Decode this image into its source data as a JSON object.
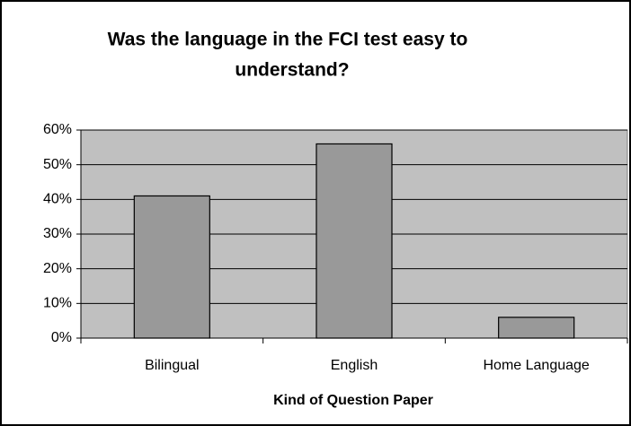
{
  "chart_data": {
    "type": "bar",
    "title_lines": [
      "Was the language in the FCI test  easy to",
      "understand?"
    ],
    "x_label": "Kind of Question Paper",
    "categories": [
      "Bilingual",
      "English",
      "Home Language"
    ],
    "values": [
      41,
      56,
      6
    ],
    "color": "#999999",
    "plot_color": "#c0c0c0",
    "ylim": [
      0,
      60
    ],
    "yticks": [
      {
        "value": 0,
        "label": "0%"
      },
      {
        "value": 10,
        "label": "10%"
      },
      {
        "value": 20,
        "label": "20%"
      },
      {
        "value": 30,
        "label": "30%"
      },
      {
        "value": 40,
        "label": "40%"
      },
      {
        "value": 50,
        "label": "50%"
      },
      {
        "value": 60,
        "label": "60%"
      }
    ],
    "grid": true
  }
}
